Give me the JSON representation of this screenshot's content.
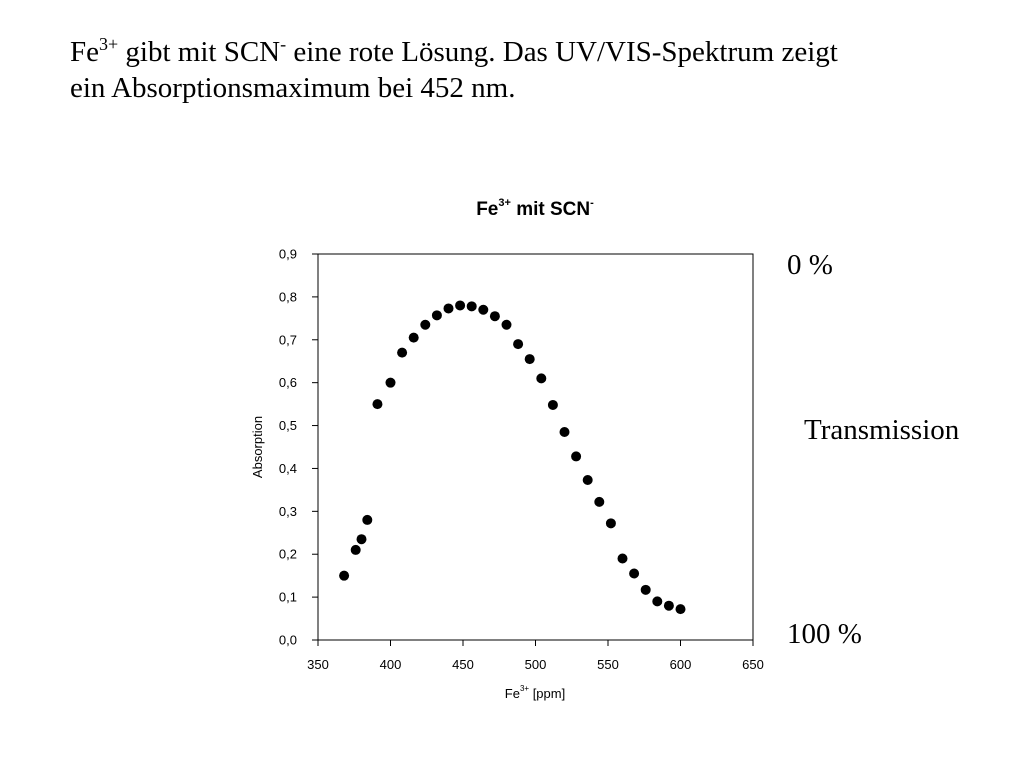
{
  "slide": {
    "line1": {
      "pre": "Fe",
      "sup1": "3+",
      "mid": " gibt mit SCN",
      "sup2": "-",
      "post": " eine rote Lösung. Das UV/VIS-Spektrum zeigt"
    },
    "line2": "ein Absorptionsmaximum bei 452 nm.",
    "right_labels": {
      "top": "0 %",
      "middle": "Transmission",
      "bottom": "100 %"
    }
  },
  "chart_data": {
    "type": "scatter",
    "title": {
      "pre": "Fe",
      "sup1": "3+",
      "mid": " mit SCN",
      "sup2": "-"
    },
    "xlabel": {
      "pre": "Fe",
      "sup": "3+",
      "post": " [ppm]"
    },
    "ylabel": "Absorption",
    "xlim": [
      350,
      650
    ],
    "ylim": [
      0.0,
      0.9
    ],
    "xticks": [
      350,
      400,
      450,
      500,
      550,
      600,
      650
    ],
    "yticks": [
      0.0,
      0.1,
      0.2,
      0.3,
      0.4,
      0.5,
      0.6,
      0.7,
      0.8,
      0.9
    ],
    "ytick_labels": [
      "0,0",
      "0,1",
      "0,2",
      "0,3",
      "0,4",
      "0,5",
      "0,6",
      "0,7",
      "0,8",
      "0,9"
    ],
    "grid": false,
    "point_color": "#000000",
    "series": [
      {
        "x": [
          368,
          376,
          380,
          384,
          391,
          400,
          408,
          416,
          424,
          432,
          440,
          448,
          456,
          464,
          472,
          480,
          488,
          496,
          504,
          512,
          520,
          528,
          536,
          544,
          552,
          560,
          568,
          576,
          584,
          592,
          600
        ],
        "y": [
          0.15,
          0.21,
          0.235,
          0.28,
          0.55,
          0.6,
          0.67,
          0.705,
          0.735,
          0.757,
          0.773,
          0.78,
          0.778,
          0.77,
          0.755,
          0.735,
          0.69,
          0.655,
          0.61,
          0.548,
          0.485,
          0.428,
          0.373,
          0.322,
          0.272,
          0.19,
          0.155,
          0.117,
          0.09,
          0.08,
          0.072
        ]
      }
    ]
  }
}
